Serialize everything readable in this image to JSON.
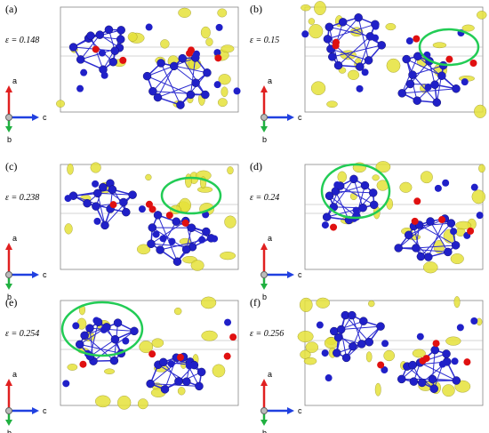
{
  "panels": [
    {
      "label": "(a)",
      "strain": "ε = 0.148"
    },
    {
      "label": "(b)",
      "strain": "ε = 0.15"
    },
    {
      "label": "(c)",
      "strain": "ε = 0.238"
    },
    {
      "label": "(d)",
      "strain": "ε = 0.24"
    },
    {
      "label": "(e)",
      "strain": "ε = 0.254"
    },
    {
      "label": "(f)",
      "strain": "ε = 0.256"
    }
  ],
  "axis_labels": {
    "a": "a",
    "b": "b",
    "c": "c"
  }
}
